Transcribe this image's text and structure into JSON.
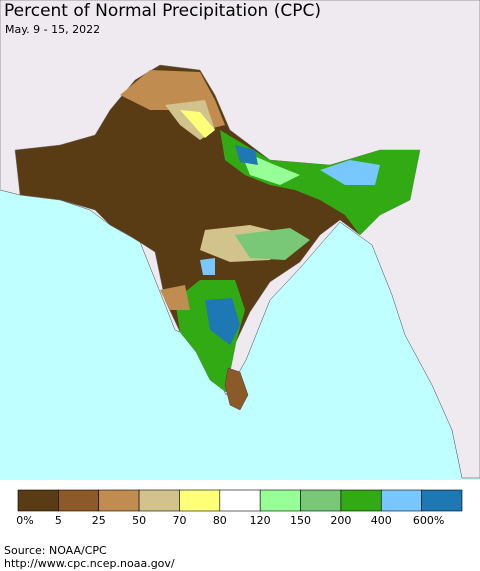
{
  "header": {
    "title": "Percent of Normal Precipitation (CPC)",
    "subtitle": "May. 9 - 15, 2022"
  },
  "legend": {
    "colors": [
      "#5a3c14",
      "#8c5a28",
      "#c08c50",
      "#d2c38c",
      "#ffff78",
      "#ffffff",
      "#96ff96",
      "#78c878",
      "#32aa14",
      "#78c8ff",
      "#1e78b4"
    ],
    "labels": [
      "0%",
      "5",
      "25",
      "50",
      "70",
      "80",
      "120",
      "150",
      "200",
      "400",
      "600%"
    ]
  },
  "footer": {
    "source": "Source: NOAA/CPC",
    "url": "http://www.cpc.ncep.noaa.gov/"
  }
}
